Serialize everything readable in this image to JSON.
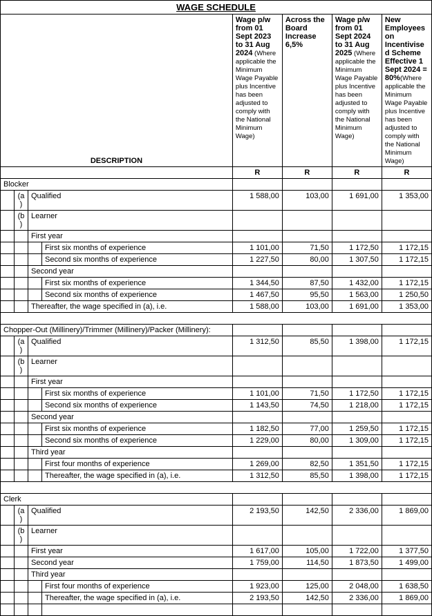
{
  "title": "WAGE SCHEDULE",
  "headers": {
    "description": "DESCRIPTION",
    "col1_main": "Wage p/w from 01 Sept 2023 to 31 Aug 2024",
    "col1_small": " (Where applicable the Minimum Wage Payable plus Incentive has been adjusted to comply with the National Minimum Wage)",
    "col2_main": "Across the Board Increase 6,5%",
    "col3_main": "Wage p/w from 01 Sept 2024 to 31 Aug 2025",
    "col3_small": " (Where applicable the Minimum Wage Payable plus Incentive has been adjusted to comply with the National Minimum Wage)",
    "col4_main": "New Employees on Incentivised Scheme Effective 1 Sept 2024 = 80%",
    "col4_small": "(Where applicable the Minimum Wage Payable plus Incentive has been adjusted to comply with the National Minimum Wage)",
    "unit": "R"
  },
  "sections": [
    {
      "cat": "Blocker",
      "rows": [
        {
          "t": "ab",
          "l": "(a)",
          "d": "Qualified",
          "v": [
            "1 588,00",
            "103,00",
            "1 691,00",
            "1 353,00"
          ]
        },
        {
          "t": "ab",
          "l": "(b)",
          "d": "Learner",
          "v": [
            "",
            "",
            "",
            ""
          ]
        },
        {
          "t": "g",
          "d": "First year",
          "v": [
            "",
            "",
            "",
            ""
          ]
        },
        {
          "t": "i",
          "d": "First six months of experience",
          "v": [
            "1 101,00",
            "71,50",
            "1 172,50",
            "1 172,15"
          ]
        },
        {
          "t": "i",
          "d": "Second six months of experience",
          "v": [
            "1 227,50",
            "80,00",
            "1 307,50",
            "1 172,15"
          ]
        },
        {
          "t": "g",
          "d": "Second year",
          "v": [
            "",
            "",
            "",
            ""
          ]
        },
        {
          "t": "i",
          "d": "First six months of experience",
          "v": [
            "1 344,50",
            "87,50",
            "1 432,00",
            "1 172,15"
          ]
        },
        {
          "t": "i",
          "d": "Second six months of experience",
          "v": [
            "1 467,50",
            "95,50",
            "1 563,00",
            "1 250,50"
          ]
        },
        {
          "t": "g",
          "d": "Thereafter, the wage specified in (a), i.e.",
          "v": [
            "1 588,00",
            "103,00",
            "1 691,00",
            "1 353,00"
          ]
        }
      ]
    },
    {
      "cat": "Chopper-Out (Millinery)/Trimmer (Millinery)/Packer (Millinery):",
      "rows": [
        {
          "t": "ab",
          "l": "(a)",
          "d": "Qualified",
          "v": [
            "1 312,50",
            "85,50",
            "1 398,00",
            "1 172,15"
          ]
        },
        {
          "t": "ab",
          "l": "(b)",
          "d": "Learner",
          "v": [
            "",
            "",
            "",
            ""
          ]
        },
        {
          "t": "g",
          "d": "First year",
          "v": [
            "",
            "",
            "",
            ""
          ]
        },
        {
          "t": "i",
          "d": "First six months of experience",
          "v": [
            "1 101,00",
            "71,50",
            "1 172,50",
            "1 172,15"
          ]
        },
        {
          "t": "i",
          "d": "Second six months of experience",
          "v": [
            "1 143,50",
            "74,50",
            "1 218,00",
            "1 172,15"
          ]
        },
        {
          "t": "g",
          "d": "Second year",
          "v": [
            "",
            "",
            "",
            ""
          ]
        },
        {
          "t": "i",
          "d": "First six months of experience",
          "v": [
            "1 182,50",
            "77,00",
            "1 259,50",
            "1 172,15"
          ]
        },
        {
          "t": "i",
          "d": "Second six months of experience",
          "v": [
            "1 229,00",
            "80,00",
            "1 309,00",
            "1 172,15"
          ]
        },
        {
          "t": "g",
          "d": "Third year",
          "v": [
            "",
            "",
            "",
            ""
          ]
        },
        {
          "t": "i",
          "d": "First four months of experience",
          "v": [
            "1 269,00",
            "82,50",
            "1 351,50",
            "1 172,15"
          ]
        },
        {
          "t": "i",
          "d": "Thereafter, the wage specified in (a), i.e.",
          "v": [
            "1 312,50",
            "85,50",
            "1 398,00",
            "1 172,15"
          ]
        }
      ]
    },
    {
      "cat": "Clerk",
      "rows": [
        {
          "t": "ab",
          "l": "(a)",
          "d": "Qualified",
          "v": [
            "2 193,50",
            "142,50",
            "2 336,00",
            "1 869,00"
          ]
        },
        {
          "t": "ab",
          "l": "(b)",
          "d": "Learner",
          "v": [
            "",
            "",
            "",
            ""
          ]
        },
        {
          "t": "g",
          "d": "First year",
          "v": [
            "1 617,00",
            "105,00",
            "1 722,00",
            "1 377,50"
          ]
        },
        {
          "t": "g",
          "d": "Second year",
          "v": [
            "1 759,00",
            "114,50",
            "1 873,50",
            "1 499,00"
          ]
        },
        {
          "t": "g",
          "d": "Third year",
          "v": [
            "",
            "",
            "",
            ""
          ]
        },
        {
          "t": "i",
          "d": "First four months of experience",
          "v": [
            "1 923,00",
            "125,00",
            "2 048,00",
            "1 638,50"
          ]
        },
        {
          "t": "i",
          "d": "Thereafter, the wage specified in (a), i.e.",
          "v": [
            "2 193,50",
            "142,50",
            "2 336,00",
            "1 869,00"
          ]
        }
      ]
    }
  ]
}
